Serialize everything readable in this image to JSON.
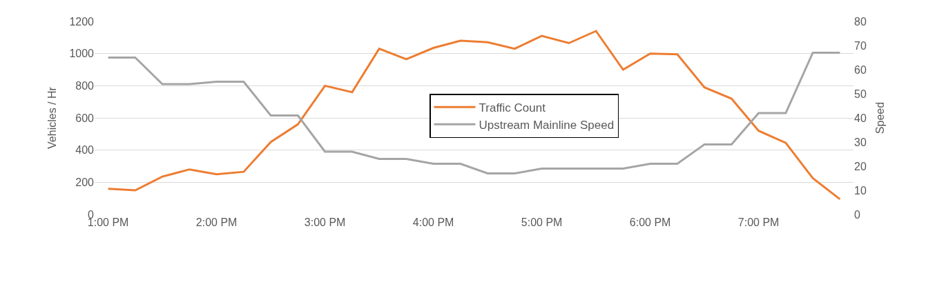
{
  "chart_data": {
    "type": "line",
    "x": [
      13,
      13.25,
      13.5,
      13.75,
      14,
      14.25,
      14.5,
      14.75,
      15,
      15.25,
      15.5,
      15.75,
      16,
      16.25,
      16.5,
      16.75,
      17,
      17.25,
      17.5,
      17.75,
      18,
      18.25,
      18.5,
      18.75,
      19,
      19.25,
      19.5,
      19.75
    ],
    "series": [
      {
        "name": "Traffic Count",
        "color": "#ed7d31",
        "values": [
          160,
          150,
          235,
          280,
          250,
          265,
          450,
          560,
          800,
          760,
          1030,
          965,
          1035,
          1080,
          1070,
          1030,
          1110,
          1065,
          1140,
          900,
          1000,
          995,
          790,
          720,
          520,
          445,
          225,
          95
        ]
      },
      {
        "name": "Upstream Mainline Speed",
        "color": "#a5a5a5",
        "axis": "y2",
        "values": [
          65,
          65,
          54,
          54,
          55,
          55,
          41,
          41,
          26,
          26,
          23,
          23,
          21,
          21,
          17,
          17,
          19,
          19,
          19,
          19,
          21,
          21,
          29,
          29,
          42,
          42,
          67,
          67
        ]
      }
    ],
    "ylabel": "Vehicles / Hr",
    "y2label": "Speed",
    "xlim": [
      12.875,
      19.875
    ],
    "xticks": [
      {
        "value": 13,
        "label": "1:00 PM"
      },
      {
        "value": 14,
        "label": "2:00 PM"
      },
      {
        "value": 15,
        "label": "3:00 PM"
      },
      {
        "value": 16,
        "label": "4:00 PM"
      },
      {
        "value": 17,
        "label": "5:00 PM"
      },
      {
        "value": 18,
        "label": "6:00 PM"
      },
      {
        "value": 19,
        "label": "7:00 PM"
      }
    ],
    "ylim": [
      0,
      1200
    ],
    "yticks": [
      0,
      200,
      400,
      600,
      800,
      1000,
      1200
    ],
    "y2lim": [
      0,
      80
    ],
    "y2ticks": [
      0,
      10,
      20,
      30,
      40,
      50,
      60,
      70,
      80
    ],
    "grid": "y",
    "legend": "center",
    "marker": "none",
    "line_style": "solid"
  }
}
